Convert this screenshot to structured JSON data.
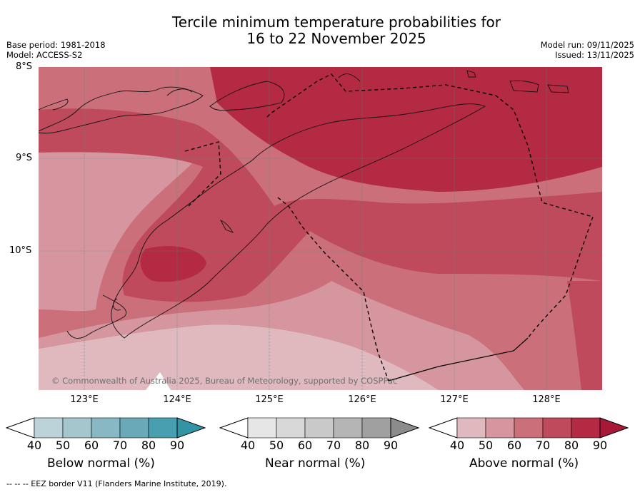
{
  "title": {
    "line1": "Tercile minimum temperature probabilities for",
    "line2": "16 to 22 November 2025"
  },
  "meta_left": {
    "base_period": "Base period: 1981-2018",
    "model": "Model: ACCESS-S2"
  },
  "meta_right": {
    "model_run": "Model run: 09/11/2025",
    "issued": "Issued: 13/11/2025"
  },
  "map": {
    "lat_labels": [
      "8°S",
      "9°S",
      "10°S"
    ],
    "lon_labels": [
      "123°E",
      "124°E",
      "125°E",
      "126°E",
      "127°E",
      "128°E"
    ],
    "copyright": "© Commonwealth of Australia 2025, Bureau of Meteorology, supported by COSPPac"
  },
  "colorbars": [
    {
      "name": "below",
      "title": "Below normal (%)",
      "ticks": [
        "40",
        "50",
        "60",
        "70",
        "80",
        "90"
      ],
      "colors": [
        "#bcd3da",
        "#a5c6cd",
        "#88b8c3",
        "#6aa9b7",
        "#489fb0",
        "#3394a6"
      ]
    },
    {
      "name": "near",
      "title": "Near normal (%)",
      "ticks": [
        "40",
        "50",
        "60",
        "70",
        "80",
        "90"
      ],
      "colors": [
        "#e6e6e6",
        "#d8d8d8",
        "#c9c9c9",
        "#b5b5b5",
        "#a0a0a0",
        "#8c8c8c"
      ]
    },
    {
      "name": "above",
      "title": "Above normal (%)",
      "ticks": [
        "40",
        "50",
        "60",
        "70",
        "80",
        "90"
      ],
      "colors": [
        "#e0b9bf",
        "#d6969f",
        "#cb6f7b",
        "#bf4a5b",
        "#b52a43",
        "#a71937"
      ]
    }
  ],
  "footer": "-- -- -- EEZ border V11 (Flanders Marine Institute, 2019)."
}
